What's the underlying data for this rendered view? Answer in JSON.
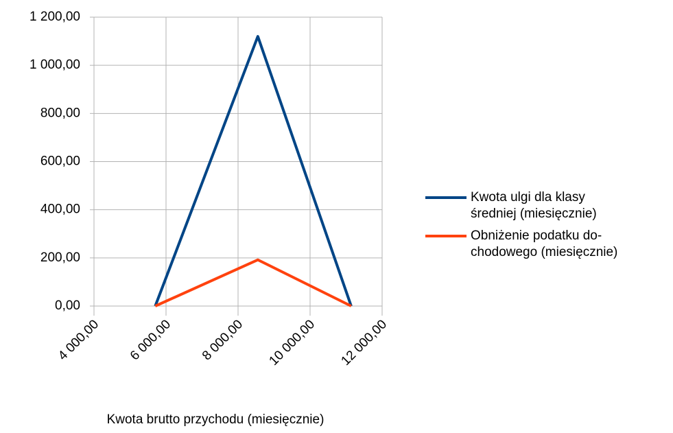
{
  "chart_data": {
    "type": "line",
    "x_label": "Kwota brutto przychodu (miesięcznie)",
    "xlim": [
      4000,
      12000
    ],
    "xticks": [
      {
        "value": 4000,
        "label": "4 000,00"
      },
      {
        "value": 6000,
        "label": "6 000,00"
      },
      {
        "value": 8000,
        "label": "8 000,00"
      },
      {
        "value": 10000,
        "label": "10 000,00"
      },
      {
        "value": 12000,
        "label": "12 000,00"
      }
    ],
    "ylim": [
      0,
      1200
    ],
    "yticks": [
      {
        "value": 0,
        "label": "0,00"
      },
      {
        "value": 200,
        "label": "200,00"
      },
      {
        "value": 400,
        "label": "400,00"
      },
      {
        "value": 600,
        "label": "600,00"
      },
      {
        "value": 800,
        "label": "800,00"
      },
      {
        "value": 1000,
        "label": "1 000,00"
      },
      {
        "value": 1200,
        "label": "1 200,00"
      }
    ],
    "grid": true,
    "legend": "right",
    "series": [
      {
        "name": " Kwota ulgi dla klasy\nśredniej (miesięcznie)",
        "color": "#004586",
        "x": [
          5701,
          8549,
          11141
        ],
        "values": [
          0,
          1120,
          0
        ]
      },
      {
        "name": "Obniżenie podatku do-\nchodowego (miesięcznie)",
        "color": "#ff420e",
        "x": [
          5701,
          8549,
          11141
        ],
        "values": [
          0,
          192,
          0
        ]
      }
    ]
  }
}
